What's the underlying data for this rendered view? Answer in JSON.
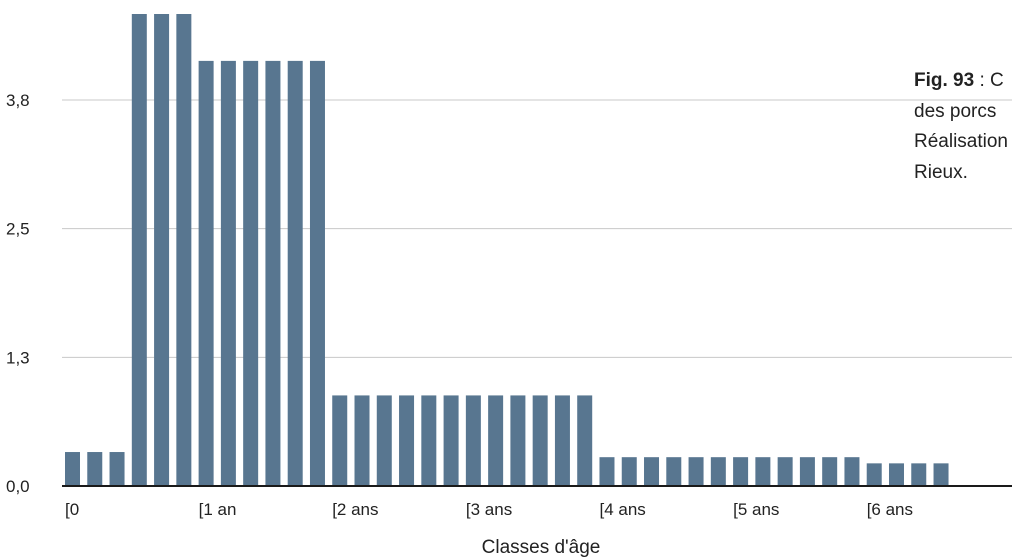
{
  "chart_data": {
    "type": "bar",
    "xlabel": "Classes d'âge",
    "ylabel": "",
    "ylim": [
      0,
      4.9
    ],
    "y_ticks": [
      "0,0",
      "1,3",
      "2,5",
      "3,8"
    ],
    "y_tick_values": [
      0,
      1.25,
      2.5,
      3.75
    ],
    "x_ticks": [
      "[0",
      "[1 an",
      "[2 ans",
      "[3 ans",
      "[4 ans",
      "[5 ans",
      "[6 ans"
    ],
    "x_tick_bar_index": [
      0,
      6,
      12,
      18,
      24,
      30,
      36
    ],
    "values": [
      0.33,
      0.33,
      0.33,
      4.97,
      4.97,
      4.97,
      4.13,
      4.13,
      4.13,
      4.13,
      4.13,
      4.13,
      0.88,
      0.88,
      0.88,
      0.88,
      0.88,
      0.88,
      0.88,
      0.88,
      0.88,
      0.88,
      0.88,
      0.88,
      0.28,
      0.28,
      0.28,
      0.28,
      0.28,
      0.28,
      0.28,
      0.28,
      0.28,
      0.28,
      0.28,
      0.28,
      0.22,
      0.22,
      0.22,
      0.22
    ],
    "grid": true,
    "bar_color": "#587690"
  },
  "annotation": {
    "fig_label": "Fig. 93",
    "lines": [
      " : C",
      "des porcs",
      "Réalisation",
      "Rieux."
    ]
  }
}
